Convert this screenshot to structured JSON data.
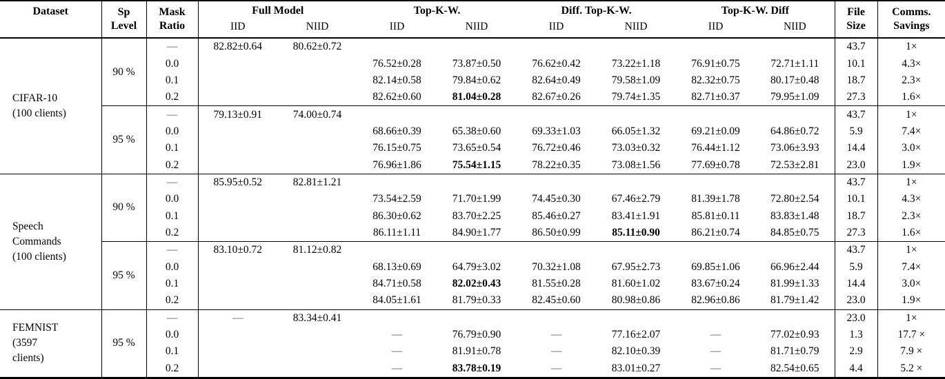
{
  "table": {
    "header": {
      "dataset": "Dataset",
      "sp_level": [
        "Sp",
        "Level"
      ],
      "mask_ratio": [
        "Mask",
        "Ratio"
      ],
      "groups": [
        "Full Model",
        "Top-K-W.",
        "Diff. Top-K-W.",
        "Top-K-W. Diff"
      ],
      "sub": [
        "IID",
        "NIID"
      ],
      "file_size": [
        "File",
        "Size"
      ],
      "comms": [
        "Comms.",
        "Savings"
      ]
    },
    "datasets": [
      {
        "name_lines": [
          "CIFAR-10",
          "(100 clients)"
        ],
        "blocks": [
          {
            "sp_level": "90 %",
            "rows": [
              {
                "mask": "—",
                "cells": [
                  "82.82±0.64",
                  "80.62±0.72",
                  "",
                  "",
                  "",
                  "",
                  "",
                  ""
                ],
                "file": "43.7",
                "savings": "1×"
              },
              {
                "mask": "0.0",
                "cells": [
                  "",
                  "",
                  "76.52±0.28",
                  "73.87±0.50",
                  "76.62±0.42",
                  "73.22±1.18",
                  "76.91±0.75",
                  "72.71±1.11"
                ],
                "file": "10.1",
                "savings": "4.3×"
              },
              {
                "mask": "0.1",
                "cells": [
                  "",
                  "",
                  "82.14±0.58",
                  "79.84±0.62",
                  "82.64±0.49",
                  "79.58±1.09",
                  "82.32±0.75",
                  "80.17±0.48"
                ],
                "file": "18.7",
                "savings": "2.3×"
              },
              {
                "mask": "0.2",
                "cells": [
                  "",
                  "",
                  "82.62±0.60",
                  "81.04±0.28",
                  "82.67±0.26",
                  "79.74±1.35",
                  "82.71±0.37",
                  "79.95±1.09"
                ],
                "bold": 3,
                "file": "27.3",
                "savings": "1.6×"
              }
            ]
          },
          {
            "sp_level": "95 %",
            "rows": [
              {
                "mask": "—",
                "cells": [
                  "79.13±0.91",
                  "74.00±0.74",
                  "",
                  "",
                  "",
                  "",
                  "",
                  ""
                ],
                "file": "43.7",
                "savings": "1×"
              },
              {
                "mask": "0.0",
                "cells": [
                  "",
                  "",
                  "68.66±0.39",
                  "65.38±0.60",
                  "69.33±1.03",
                  "66.05±1.32",
                  "69.21±0.09",
                  "64.86±0.72"
                ],
                "file": "5.9",
                "savings": "7.4×"
              },
              {
                "mask": "0.1",
                "cells": [
                  "",
                  "",
                  "76.15±0.75",
                  "73.65±0.54",
                  "76.72±0.46",
                  "73.03±0.32",
                  "76.44±1.12",
                  "73.06±3.93"
                ],
                "file": "14.4",
                "savings": "3.0×"
              },
              {
                "mask": "0.2",
                "cells": [
                  "",
                  "",
                  "76.96±1.86",
                  "75.54±1.15",
                  "78.22±0.35",
                  "73.08±1.56",
                  "77.69±0.78",
                  "72.53±2.81"
                ],
                "bold": 3,
                "file": "23.0",
                "savings": "1.9×"
              }
            ]
          }
        ]
      },
      {
        "name_lines": [
          "Speech",
          "Commands",
          "(100 clients)"
        ],
        "blocks": [
          {
            "sp_level": "90 %",
            "rows": [
              {
                "mask": "—",
                "cells": [
                  "85.95±0.52",
                  "82.81±1.21",
                  "",
                  "",
                  "",
                  "",
                  "",
                  ""
                ],
                "file": "43.7",
                "savings": "1×"
              },
              {
                "mask": "0.0",
                "cells": [
                  "",
                  "",
                  "73.54±2.59",
                  "71.70±1.99",
                  "74.45±0.30",
                  "67.46±2.79",
                  "81.39±1.78",
                  "72.80±2.54"
                ],
                "file": "10.1",
                "savings": "4.3×"
              },
              {
                "mask": "0.1",
                "cells": [
                  "",
                  "",
                  "86.30±0.62",
                  "83.70±2.25",
                  "85.46±0.27",
                  "83.41±1.91",
                  "85.81±0.11",
                  "83.83±1.48"
                ],
                "file": "18.7",
                "savings": "2.3×"
              },
              {
                "mask": "0.2",
                "cells": [
                  "",
                  "",
                  "86.11±1.11",
                  "84.90±1.77",
                  "86.50±0.99",
                  "85.11±0.90",
                  "86.21±0.74",
                  "84.85±0.75"
                ],
                "bold": 5,
                "file": "27.3",
                "savings": "1.6×"
              }
            ]
          },
          {
            "sp_level": "95 %",
            "rows": [
              {
                "mask": "—",
                "cells": [
                  "83.10±0.72",
                  "81.12±0.82",
                  "",
                  "",
                  "",
                  "",
                  "",
                  ""
                ],
                "file": "43.7",
                "savings": "1×"
              },
              {
                "mask": "0.0",
                "cells": [
                  "",
                  "",
                  "68.13±0.69",
                  "64.79±3.02",
                  "70.32±1.08",
                  "67.95±2.73",
                  "69.85±1.06",
                  "66.96±2.44"
                ],
                "file": "5.9",
                "savings": "7.4×"
              },
              {
                "mask": "0.1",
                "cells": [
                  "",
                  "",
                  "84.71±0.58",
                  "82.02±0.43",
                  "81.55±0.28",
                  "81.60±1.02",
                  "83.67±0.24",
                  "81.99±1.33"
                ],
                "bold": 3,
                "file": "14.4",
                "savings": "3.0×"
              },
              {
                "mask": "0.2",
                "cells": [
                  "",
                  "",
                  "84.05±1.61",
                  "81.79±0.33",
                  "82.45±0.60",
                  "80.98±0.86",
                  "82.96±0.86",
                  "81.79±1.42"
                ],
                "file": "23.0",
                "savings": "1.9×"
              }
            ]
          }
        ]
      },
      {
        "name_lines": [
          "FEMNIST",
          "(3597",
          "clients)"
        ],
        "blocks": [
          {
            "sp_level": "95 %",
            "rows": [
              {
                "mask": "—",
                "cells": [
                  "—",
                  "83.34±0.41",
                  "",
                  "",
                  "",
                  "",
                  "",
                  ""
                ],
                "file": "23.0",
                "savings": "1×"
              },
              {
                "mask": "0.0",
                "cells": [
                  "",
                  "",
                  "—",
                  "76.79±0.90",
                  "—",
                  "77.16±2.07",
                  "—",
                  "77.02±0.93"
                ],
                "file": "1.3",
                "savings": "17.7 ×"
              },
              {
                "mask": "0.1",
                "cells": [
                  "",
                  "",
                  "—",
                  "81.91±0.78",
                  "—",
                  "82.10±0.39",
                  "—",
                  "81.71±0.79"
                ],
                "file": "2.9",
                "savings": "7.9 ×"
              },
              {
                "mask": "0.2",
                "cells": [
                  "",
                  "",
                  "—",
                  "83.78±0.19",
                  "—",
                  "83.01±0.27",
                  "—",
                  "82.54±0.65"
                ],
                "bold": 3,
                "file": "4.4",
                "savings": "5.2 ×"
              }
            ]
          }
        ]
      }
    ]
  }
}
